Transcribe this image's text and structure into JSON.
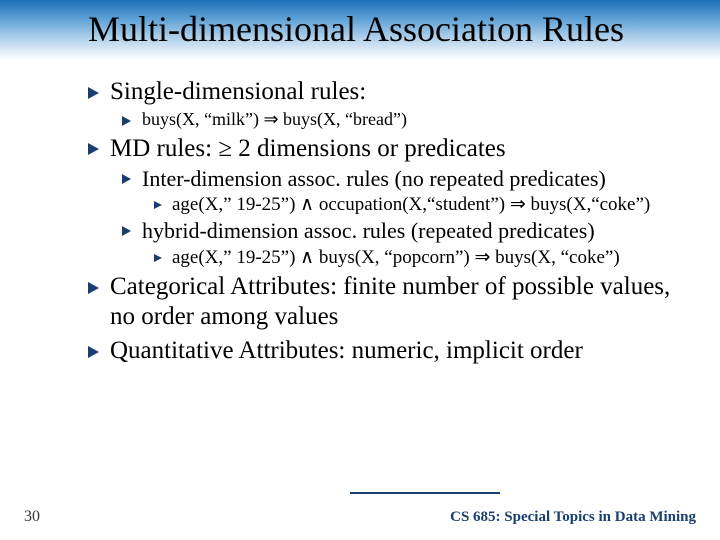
{
  "title": "Multi-dimensional Association Rules",
  "colors": {
    "accent": "#1a3e6e",
    "gradient_top": "#1e6fb8",
    "gradient_bottom": "#ffffff",
    "background": "#ffffff",
    "text": "#000000"
  },
  "typography": {
    "title_font": "Comic Sans MS",
    "title_fontsize": 36,
    "body_font": "Times New Roman",
    "lvl1_fontsize": 25,
    "lvl2_fontsize": 22,
    "lvl3_fontsize": 19,
    "rule_fontsize": 18,
    "footer_fontsize": 16
  },
  "items": {
    "b1": "Single-dimensional rules:",
    "b1_rule": "buys(X, “milk”)  ⇒   buys(X, “bread”)",
    "b2": "MD rules: ≥ 2 dimensions or predicates",
    "b2_1": "Inter-dimension assoc. rules (no repeated predicates)",
    "b2_1_rule": "age(X,” 19-25”) ∧ occupation(X,“student”) ⇒ buys(X,“coke”)",
    "b2_2": "hybrid-dimension assoc. rules (repeated predicates)",
    "b2_2_rule": "age(X,” 19-25”) ∧  buys(X, “popcorn”) ⇒ buys(X, “coke”)",
    "b3": "Categorical Attributes: finite number of possible values, no order among values",
    "b4": "Quantitative Attributes: numeric, implicit order"
  },
  "footer": {
    "page": "30",
    "course": "CS 685: Special Topics in Data Mining"
  }
}
